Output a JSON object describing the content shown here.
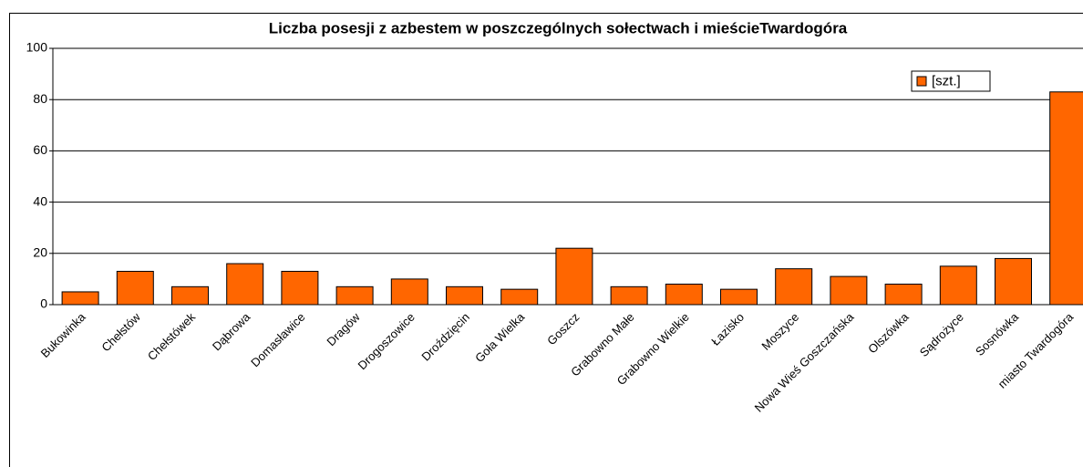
{
  "chart_data": {
    "type": "bar",
    "title": "Liczba posesji z azbestem w poszczególnych sołectwach i mieścieTwardogóra",
    "categories": [
      "Bukowinka",
      "Chełstów",
      "Chełstówek",
      "Dąbrowa",
      "Domasławice",
      "Dragów",
      "Drogoszowice",
      "Droździęcin",
      "Goła Wielka",
      "Goszcz",
      "Grabowno Małe",
      "Grabowno Wielkie",
      "Łazisko",
      "Moszyce",
      "Nowa Wieś Goszczańska",
      "Olszówka",
      "Sądrożyce",
      "Sosnówka",
      "miasto Twardogóra"
    ],
    "series": [
      {
        "name": "[szt.]",
        "color": "#ff6600",
        "values": [
          5,
          13,
          7,
          16,
          13,
          7,
          10,
          7,
          6,
          22,
          7,
          8,
          6,
          14,
          11,
          8,
          15,
          18,
          83
        ]
      }
    ],
    "ylim": [
      0,
      100
    ],
    "yticks": [
      0,
      20,
      40,
      60,
      80,
      100
    ],
    "grid": true,
    "legend": "top-right"
  }
}
